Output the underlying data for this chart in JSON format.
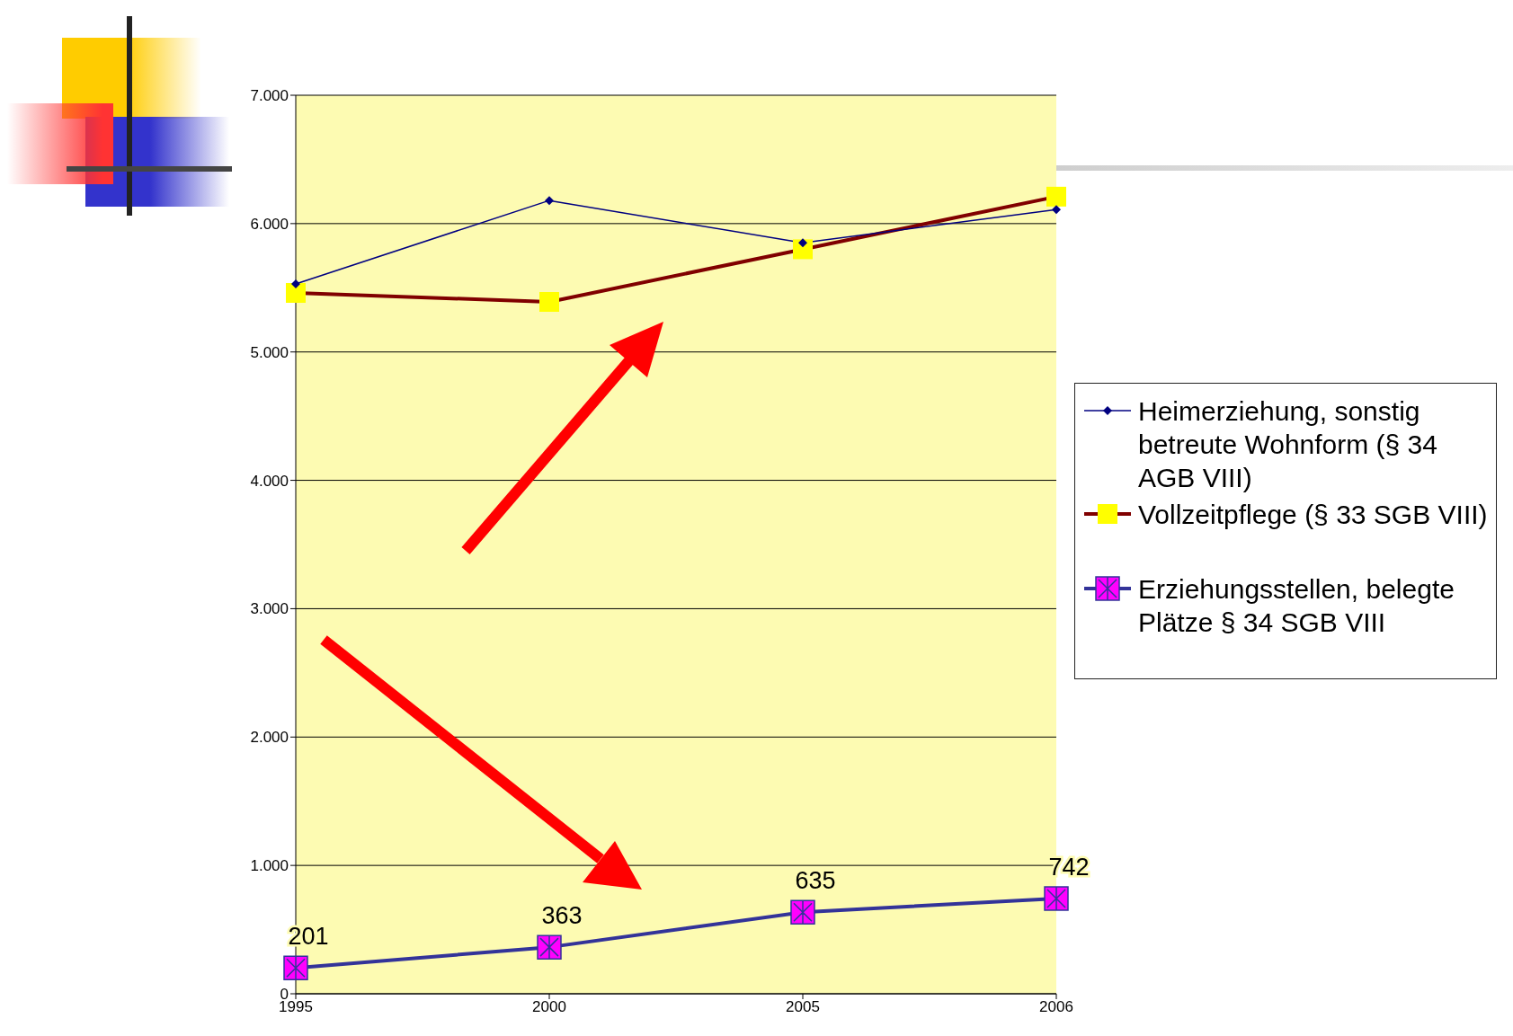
{
  "chart_data": {
    "type": "line",
    "categories": [
      "1995",
      "2000",
      "2005",
      "2006"
    ],
    "series": [
      {
        "name": "Heimerziehung, sonstig betreute Wohnform  (§ 34 AGB VIII)",
        "color": "#000080",
        "values": [
          5530,
          6180,
          5850,
          6110
        ],
        "marker": "diamond"
      },
      {
        "name": "Vollzeitpflege (§ 33 SGB VIII)",
        "color": "#800000",
        "values": [
          5460,
          5390,
          5800,
          6210
        ],
        "marker": "square"
      },
      {
        "name": "Erziehungsstellen, belegte Plätze § 34 SGB VIII",
        "color": "#333399",
        "values": [
          201,
          363,
          635,
          742
        ],
        "marker": "cross",
        "value_labels": [
          "201",
          "363",
          "635",
          "742"
        ]
      }
    ],
    "ylim": [
      0,
      7000
    ],
    "yticks": [
      0,
      {
        "value": 1000,
        "label": "1.000"
      },
      {
        "value": 2000,
        "label": "2.000"
      },
      {
        "value": 3000,
        "label": "3.000"
      },
      {
        "value": 4000,
        "label": "4.000"
      },
      {
        "value": 5000,
        "label": "5.000"
      },
      {
        "value": 6000,
        "label": "6.000"
      },
      {
        "value": 7000,
        "label": "7.000"
      }
    ],
    "grid": "y",
    "legend": "right"
  }
}
